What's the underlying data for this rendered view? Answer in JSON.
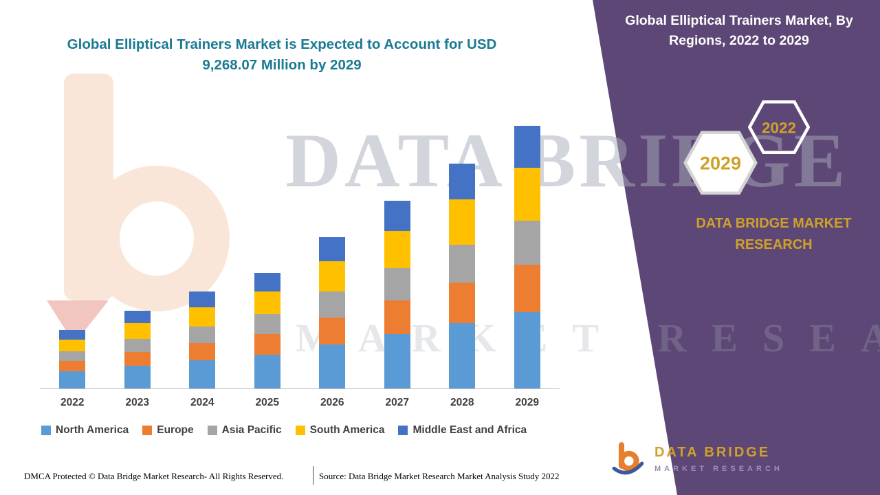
{
  "header": {
    "main_title_line1": "Global Elliptical Trainers Market is Expected to Account for USD",
    "main_title_line2": "9,268.07 Million by 2029",
    "panel_title": "Global Elliptical Trainers Market, By Regions, 2022 to 2029"
  },
  "side_panel": {
    "hexagon_front_year": "2029",
    "hexagon_back_year": "2022",
    "brand_text": "DATA BRIDGE MARKET RESEARCH",
    "panel_color": "#5d4776",
    "accent_gold": "#d0a129"
  },
  "logo": {
    "name": "DATA BRIDGE",
    "subtitle": "MARKET RESEARCH"
  },
  "watermark": {
    "line1": "DATA BRIDGE",
    "line2": "MARKET RESEARCH"
  },
  "footer": {
    "dmca": "DMCA Protected © Data Bridge Market Research- All Rights Reserved.",
    "source": "Source: Data Bridge Market Research Market Analysis Study 2022"
  },
  "chart_data": {
    "type": "bar",
    "stacked": true,
    "title": "Global Elliptical Trainers Market, By Regions, 2022 to 2029",
    "unit": "USD Million",
    "categories": [
      "2022",
      "2023",
      "2024",
      "2025",
      "2026",
      "2027",
      "2028",
      "2029"
    ],
    "series": [
      {
        "name": "North America",
        "color": "#5b9bd5",
        "values": [
          597,
          795,
          992,
          1183,
          1549,
          1920,
          2300,
          2688
        ]
      },
      {
        "name": "Europe",
        "color": "#ed7d31",
        "values": [
          371,
          493,
          616,
          734,
          961,
          1192,
          1427,
          1668
        ]
      },
      {
        "name": "Asia Pacific",
        "color": "#a5a5a5",
        "values": [
          350,
          466,
          581,
          694,
          908,
          1125,
          1348,
          1576
        ]
      },
      {
        "name": "South America",
        "color": "#ffc000",
        "values": [
          412,
          548,
          684,
          816,
          1068,
          1324,
          1586,
          1854
        ]
      },
      {
        "name": "Middle East and Africa",
        "color": "#4472c4",
        "values": [
          330,
          438,
          547,
          653,
          854,
          1059,
          1269,
          1482
        ]
      }
    ],
    "totals_estimated": [
      2060,
      2740,
      3420,
      4080,
      5340,
      6620,
      7930,
      9268
    ],
    "stated_total_2029": "USD 9,268.07 Million",
    "ylim": [
      0,
      9300
    ],
    "gridlines": false,
    "legend_position": "bottom"
  }
}
